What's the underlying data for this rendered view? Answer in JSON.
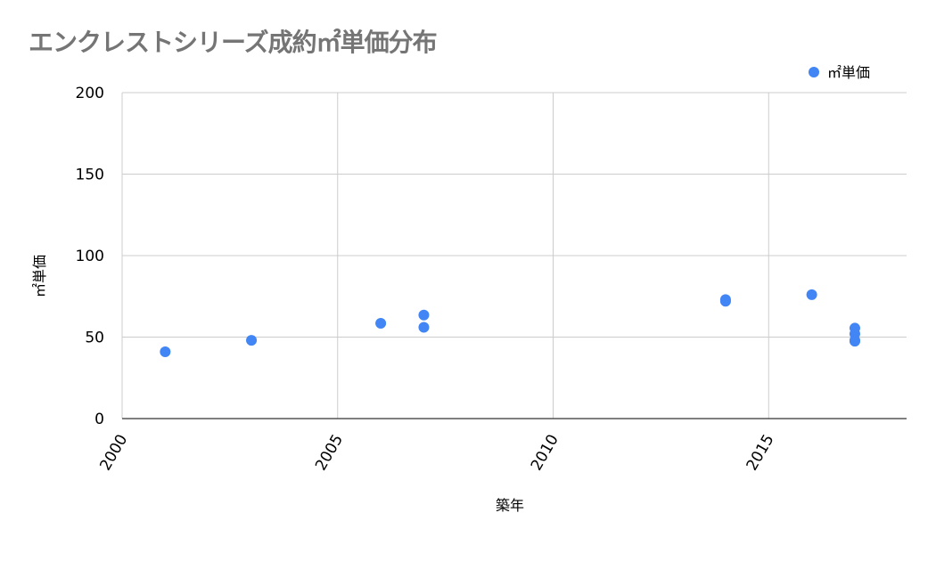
{
  "chart_data": {
    "type": "scatter",
    "title": "エンクレストシリーズ成約㎡単価分布",
    "xlabel": "築年",
    "ylabel": "㎡単価",
    "xlim": [
      2000,
      2018.2
    ],
    "ylim": [
      0,
      200
    ],
    "x_ticks": [
      "2000",
      "2005",
      "2010",
      "2015"
    ],
    "y_ticks": [
      "0",
      "50",
      "100",
      "150",
      "200"
    ],
    "grid": true,
    "legend_position": "top-right",
    "series": [
      {
        "name": "㎡単価",
        "color": "#4285f4",
        "points": [
          {
            "x": 2001,
            "y": 41
          },
          {
            "x": 2003,
            "y": 48
          },
          {
            "x": 2006,
            "y": 58.5
          },
          {
            "x": 2007,
            "y": 63.5
          },
          {
            "x": 2007,
            "y": 56
          },
          {
            "x": 2014,
            "y": 73
          },
          {
            "x": 2014,
            "y": 72
          },
          {
            "x": 2016,
            "y": 76
          },
          {
            "x": 2017,
            "y": 55.5
          },
          {
            "x": 2017,
            "y": 52
          },
          {
            "x": 2017,
            "y": 48
          },
          {
            "x": 2017,
            "y": 47.5
          }
        ]
      }
    ]
  }
}
